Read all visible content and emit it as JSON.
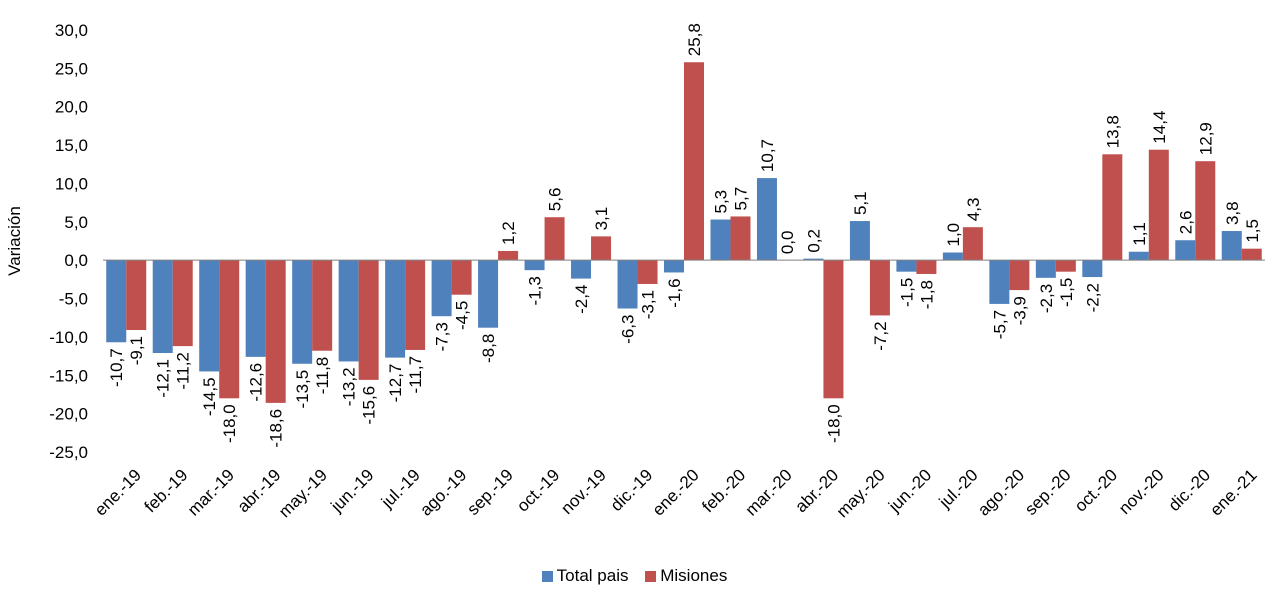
{
  "chart_data": {
    "type": "bar",
    "title": "",
    "xlabel": "",
    "ylabel": "Variación",
    "ylim": [
      -25,
      30
    ],
    "yticks": [
      "30,0",
      "25,0",
      "20,0",
      "15,0",
      "10,0",
      "5,0",
      "0,0",
      "-5,0",
      "-10,0",
      "-15,0",
      "-20,0",
      "-25,0"
    ],
    "ytick_values": [
      30,
      25,
      20,
      15,
      10,
      5,
      0,
      -5,
      -10,
      -15,
      -20,
      -25
    ],
    "grid": false,
    "legend_position": "bottom",
    "categories": [
      "ene.-19",
      "feb.-19",
      "mar.-19",
      "abr.-19",
      "may.-19",
      "jun.-19",
      "jul.-19",
      "ago.-19",
      "sep.-19",
      "oct.-19",
      "nov.-19",
      "dic.-19",
      "ene.-20",
      "feb.-20",
      "mar.-20",
      "abr.-20",
      "may.-20",
      "jun.-20",
      "jul.-20",
      "ago.-20",
      "sep.-20",
      "oct.-20",
      "nov.-20",
      "dic.-20",
      "ene.-21"
    ],
    "series": [
      {
        "name": "Total pais",
        "color": "#4f81bd",
        "values": [
          -10.7,
          -12.1,
          -14.5,
          -12.6,
          -13.5,
          -13.2,
          -12.7,
          -7.3,
          -8.8,
          -1.3,
          -2.4,
          -6.3,
          -1.6,
          5.3,
          10.7,
          0.2,
          5.1,
          -1.5,
          1.0,
          -5.7,
          -2.3,
          -2.2,
          1.1,
          2.6,
          3.8
        ],
        "labels": [
          "-10,7",
          "-12,1",
          "-14,5",
          "-12,6",
          "-13,5",
          "-13,2",
          "-12,7",
          "-7,3",
          "-8,8",
          "-1,3",
          "-2,4",
          "-6,3",
          "-1,6",
          "5,3",
          "10,7",
          "0,2",
          "5,1",
          "-1,5",
          "1,0",
          "-5,7",
          "-2,3",
          "-2,2",
          "1,1",
          "2,6",
          "3,8"
        ]
      },
      {
        "name": "Misiones",
        "color": "#c0504d",
        "values": [
          -9.1,
          -11.2,
          -18.0,
          -18.6,
          -11.8,
          -15.6,
          -11.7,
          -4.5,
          1.2,
          5.6,
          3.1,
          -3.1,
          25.8,
          5.7,
          0.0,
          -18.0,
          -7.2,
          -1.8,
          4.3,
          -3.9,
          -1.5,
          13.8,
          14.4,
          12.9,
          1.5
        ],
        "labels": [
          "-9,1",
          "-11,2",
          "-18,0",
          "-18,6",
          "-11,8",
          "-15,6",
          "-11,7",
          "-4,5",
          "1,2",
          "5,6",
          "3,1",
          "-3,1",
          "25,8",
          "5,7",
          "0,0",
          "-18,0",
          "-7,2",
          "-1,8",
          "4,3",
          "-3,9",
          "-1,5",
          "13,8",
          "14,4",
          "12,9",
          "1,5"
        ]
      }
    ]
  }
}
